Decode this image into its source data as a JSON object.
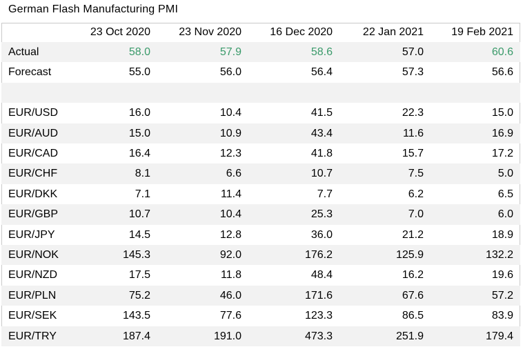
{
  "title": "German Flash Manufacturing PMI",
  "columns": [
    "",
    "23 Oct 2020",
    "23 Nov 2020",
    "16 Dec 2020",
    "22 Jan 2021",
    "19 Feb 2021"
  ],
  "actual": {
    "label": "Actual",
    "values": [
      "58.0",
      "57.9",
      "58.6",
      "57.0",
      "60.6"
    ],
    "highlight_color": "#3a9a6a",
    "highlighted": [
      true,
      true,
      true,
      false,
      true
    ]
  },
  "forecast": {
    "label": "Forecast",
    "values": [
      "55.0",
      "56.0",
      "56.4",
      "57.3",
      "56.6"
    ]
  },
  "pairs": [
    {
      "label": "EUR/USD",
      "values": [
        "16.0",
        "10.4",
        "41.5",
        "22.3",
        "15.0"
      ]
    },
    {
      "label": "EUR/AUD",
      "values": [
        "15.0",
        "10.9",
        "43.4",
        "11.6",
        "16.9"
      ]
    },
    {
      "label": "EUR/CAD",
      "values": [
        "16.4",
        "12.3",
        "41.8",
        "15.7",
        "17.2"
      ]
    },
    {
      "label": "EUR/CHF",
      "values": [
        "8.1",
        "6.6",
        "10.7",
        "7.5",
        "5.0"
      ]
    },
    {
      "label": "EUR/DKK",
      "values": [
        "7.1",
        "11.4",
        "7.7",
        "6.2",
        "6.5"
      ]
    },
    {
      "label": "EUR/GBP",
      "values": [
        "10.7",
        "10.4",
        "25.3",
        "7.0",
        "6.0"
      ]
    },
    {
      "label": "EUR/JPY",
      "values": [
        "14.5",
        "12.8",
        "36.0",
        "21.2",
        "18.9"
      ]
    },
    {
      "label": "EUR/NOK",
      "values": [
        "145.3",
        "92.0",
        "176.2",
        "125.9",
        "132.2"
      ]
    },
    {
      "label": "EUR/NZD",
      "values": [
        "17.5",
        "11.8",
        "48.4",
        "16.2",
        "19.6"
      ]
    },
    {
      "label": "EUR/PLN",
      "values": [
        "75.2",
        "46.0",
        "171.6",
        "67.6",
        "57.2"
      ]
    },
    {
      "label": "EUR/SEK",
      "values": [
        "143.5",
        "77.6",
        "123.3",
        "86.5",
        "83.9"
      ]
    },
    {
      "label": "EUR/TRY",
      "values": [
        "187.4",
        "191.0",
        "473.3",
        "251.9",
        "179.4"
      ]
    }
  ]
}
